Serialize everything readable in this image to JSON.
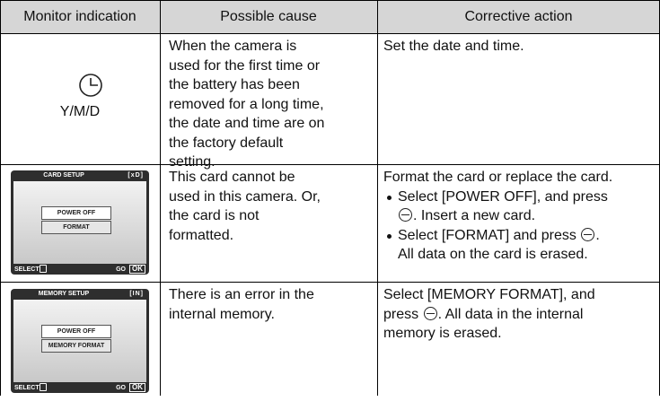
{
  "table": {
    "header": {
      "indication": "Monitor indication",
      "cause": "Possible cause",
      "action": "Corrective action"
    },
    "rows": [
      {
        "indication": {
          "label": "Y/M/D"
        },
        "cause": [
          "When the camera is",
          "used for the first time or",
          "the battery has been",
          "removed for a long time,",
          "the date and time are on",
          "the factory default",
          "setting."
        ],
        "action": {
          "lines": [
            "Set the date and time."
          ]
        }
      },
      {
        "indication": {
          "screen": {
            "title": "CARD SETUP",
            "tag": "[xD]",
            "options": [
              "POWER OFF",
              "FORMAT"
            ],
            "select": "SELECT",
            "go": "GO",
            "ok": "OK"
          }
        },
        "cause": [
          "This card cannot be",
          "used in this camera. Or,",
          "the card is not",
          "formatted."
        ],
        "action": {
          "intro": "Format the card or replace the card.",
          "bullets": [
            [
              "Select [POWER OFF], and press",
              ". Insert a new card."
            ],
            [
              "Select [FORMAT] and press",
              ".",
              "All data on the card is erased."
            ]
          ]
        }
      },
      {
        "indication": {
          "screen": {
            "title": "MEMORY SETUP",
            "tag": "[IN]",
            "options": [
              "POWER OFF",
              "MEMORY FORMAT"
            ],
            "select": "SELECT",
            "go": "GO",
            "ok": "OK"
          }
        },
        "cause": [
          "There is an error in the",
          "internal memory."
        ],
        "action": {
          "lines": [
            "Select [MEMORY FORMAT], and",
            "press",
            ". All data in the internal",
            "memory is erased."
          ]
        }
      }
    ]
  }
}
